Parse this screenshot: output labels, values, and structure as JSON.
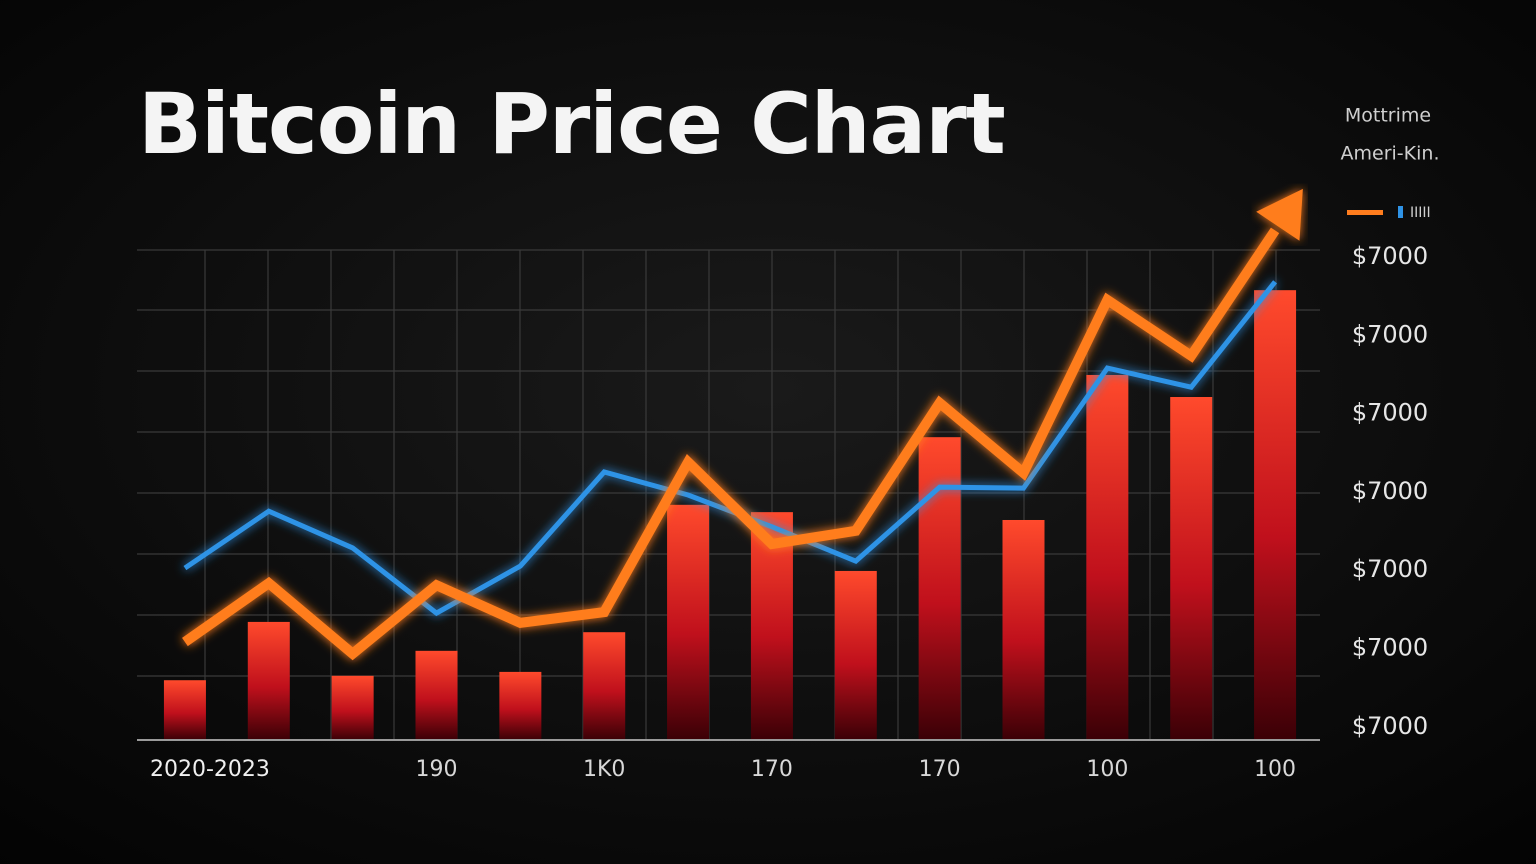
{
  "chart_data": {
    "type": "bar",
    "title": "Bitcoin Price Chart",
    "legend_lines": [
      "Mottrime",
      "Ameri-Kin."
    ],
    "legend_key_label": "IIIII",
    "y_axis_labels": [
      "$7000",
      "$7000",
      "$7000",
      "$7000",
      "$7000",
      "$7000",
      "$7000"
    ],
    "categories": [
      "2020-2023",
      null,
      null,
      "190",
      null,
      "1K0",
      null,
      "170",
      null,
      "170",
      null,
      "100",
      null,
      "100"
    ],
    "ylim": [
      0,
      110
    ],
    "grid": true,
    "series": [
      {
        "type": "bar",
        "color": "#f0402a",
        "values": [
          12.2,
          24.1,
          13.1,
          18.2,
          13.9,
          22,
          48,
          46.5,
          34.5,
          61.8,
          44.9,
          74.5,
          70,
          91.8
        ]
      },
      {
        "type": "line",
        "color": "#2f93e6",
        "values": [
          35.1,
          46.7,
          39.2,
          25.9,
          35.5,
          54.7,
          50,
          43.5,
          36.5,
          51.6,
          51.4,
          75.9,
          72,
          93.5
        ]
      },
      {
        "type": "line",
        "color": "#ff7d1e",
        "values": [
          20,
          32,
          17.6,
          31.6,
          23.9,
          26.1,
          56.7,
          40,
          42.7,
          68.8,
          54.5,
          89.8,
          78.4,
          104
        ]
      }
    ]
  }
}
